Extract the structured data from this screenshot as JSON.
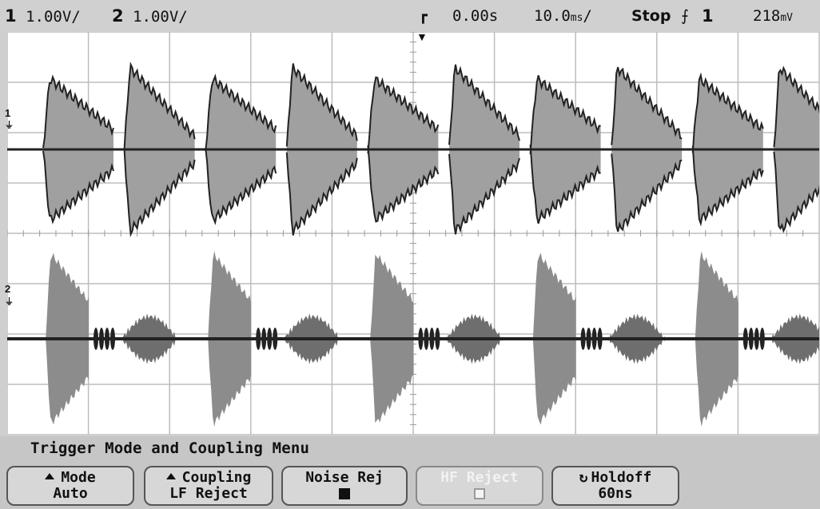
{
  "status": {
    "ch1_scale": "1.00V/",
    "ch1_num": "1",
    "ch2_scale": "1.00V/",
    "ch2_num": "2",
    "delay": "0.00s",
    "timebase": "10.0",
    "timebase_unit": "ms",
    "run_state": "Stop",
    "trigger_source": "1",
    "trigger_level": "218",
    "trigger_level_unit": "mV"
  },
  "markers": {
    "ch1": "1",
    "ch2": "2"
  },
  "menu": {
    "title": "Trigger Mode and Coupling Menu",
    "softkeys": [
      {
        "label": "Mode",
        "value": "Auto"
      },
      {
        "label": "Coupling",
        "value": "LF Reject"
      },
      {
        "label": "Noise Rej",
        "value": "on"
      },
      {
        "label": "HF Reject",
        "value": "off"
      },
      {
        "label": "Holdoff",
        "value": "60ns"
      }
    ]
  },
  "colors": {
    "graticule_bg": "#ffffff",
    "trace": "#a0a0a0",
    "envelope": "#222222"
  }
}
